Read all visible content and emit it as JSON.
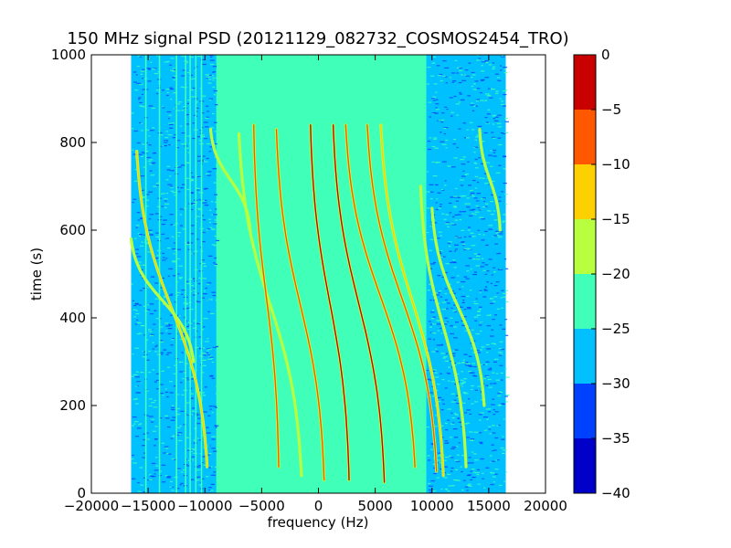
{
  "chart_data": {
    "type": "heatmap",
    "title": "150 MHz signal PSD (20121129_082732_COSMOS2454_TRO)",
    "xlabel": "frequency (Hz)",
    "ylabel": "time (s)",
    "xlim": [
      -20000,
      20000
    ],
    "ylim": [
      0,
      1000
    ],
    "xticks": [
      -20000,
      -15000,
      -10000,
      -5000,
      0,
      5000,
      10000,
      15000,
      20000
    ],
    "xtick_labels": [
      "−20000",
      "−15000",
      "−10000",
      "−5000",
      "0",
      "5000",
      "10000",
      "15000",
      "20000"
    ],
    "yticks": [
      0,
      200,
      400,
      600,
      800,
      1000
    ],
    "ytick_labels": [
      "0",
      "200",
      "400",
      "600",
      "800",
      "1000"
    ],
    "data_extent_x": [
      -16500,
      16500
    ],
    "data_extent_y": [
      0,
      1000
    ],
    "grid": false,
    "background_level": {
      "outer_band_db": -27,
      "center_band_db": -22,
      "outer_band_x": [
        [
          -16500,
          -9000
        ],
        [
          9500,
          16500
        ]
      ]
    },
    "traces": [
      {
        "x_top": -16000,
        "t_top": 780,
        "x_bottom": -9800,
        "t_bottom": 60,
        "peak_db": -15
      },
      {
        "x_top": -16500,
        "t_top": 580,
        "x_bottom": -11000,
        "t_bottom": 300,
        "peak_db": -18
      },
      {
        "x_top": -9500,
        "t_top": 830,
        "x_bottom": -6000,
        "t_bottom": 600,
        "peak_db": -17
      },
      {
        "x_top": -7000,
        "t_top": 820,
        "x_bottom": -1500,
        "t_bottom": 40,
        "peak_db": -17
      },
      {
        "x_top": -5700,
        "t_top": 840,
        "x_bottom": -3500,
        "t_bottom": 60,
        "peak_db": -10
      },
      {
        "x_top": -3700,
        "t_top": 830,
        "x_bottom": 500,
        "t_bottom": 30,
        "peak_db": -8
      },
      {
        "x_top": -700,
        "t_top": 840,
        "x_bottom": 2700,
        "t_bottom": 30,
        "peak_db": -5
      },
      {
        "x_top": 1300,
        "t_top": 840,
        "x_bottom": 5800,
        "t_bottom": 25,
        "peak_db": -5
      },
      {
        "x_top": 2400,
        "t_top": 840,
        "x_bottom": 8500,
        "t_bottom": 60,
        "peak_db": -7
      },
      {
        "x_top": 4300,
        "t_top": 840,
        "x_bottom": 10400,
        "t_bottom": 50,
        "peak_db": -8
      },
      {
        "x_top": 5500,
        "t_top": 840,
        "x_bottom": 11000,
        "t_bottom": 40,
        "peak_db": -12
      },
      {
        "x_top": 9000,
        "t_top": 700,
        "x_bottom": 13000,
        "t_bottom": 60,
        "peak_db": -16
      },
      {
        "x_top": 10000,
        "t_top": 650,
        "x_bottom": 14600,
        "t_bottom": 200,
        "peak_db": -18
      },
      {
        "x_top": 14200,
        "t_top": 830,
        "x_bottom": 16000,
        "t_bottom": 600,
        "peak_db": -16
      }
    ],
    "vertical_lines": [
      {
        "x": -15200,
        "db": -24
      },
      {
        "x": -14000,
        "db": -24
      },
      {
        "x": -12500,
        "db": -24
      },
      {
        "x": -11700,
        "db": -24
      },
      {
        "x": -11300,
        "db": -24
      },
      {
        "x": -10800,
        "db": -24
      },
      {
        "x": -10300,
        "db": -24
      }
    ],
    "colorbar": {
      "min": -40,
      "max": 0,
      "levels": [
        -40,
        -35,
        -30,
        -25,
        -20,
        -15,
        -10,
        -5,
        0
      ],
      "tick_labels": [
        "−40",
        "−35",
        "−30",
        "−25",
        "−20",
        "−15",
        "−10",
        "−5",
        "0"
      ],
      "colors": [
        "#0000c8",
        "#0040ff",
        "#00c0ff",
        "#40ffb8",
        "#b8ff40",
        "#ffd000",
        "#ff5800",
        "#c80000"
      ]
    }
  }
}
